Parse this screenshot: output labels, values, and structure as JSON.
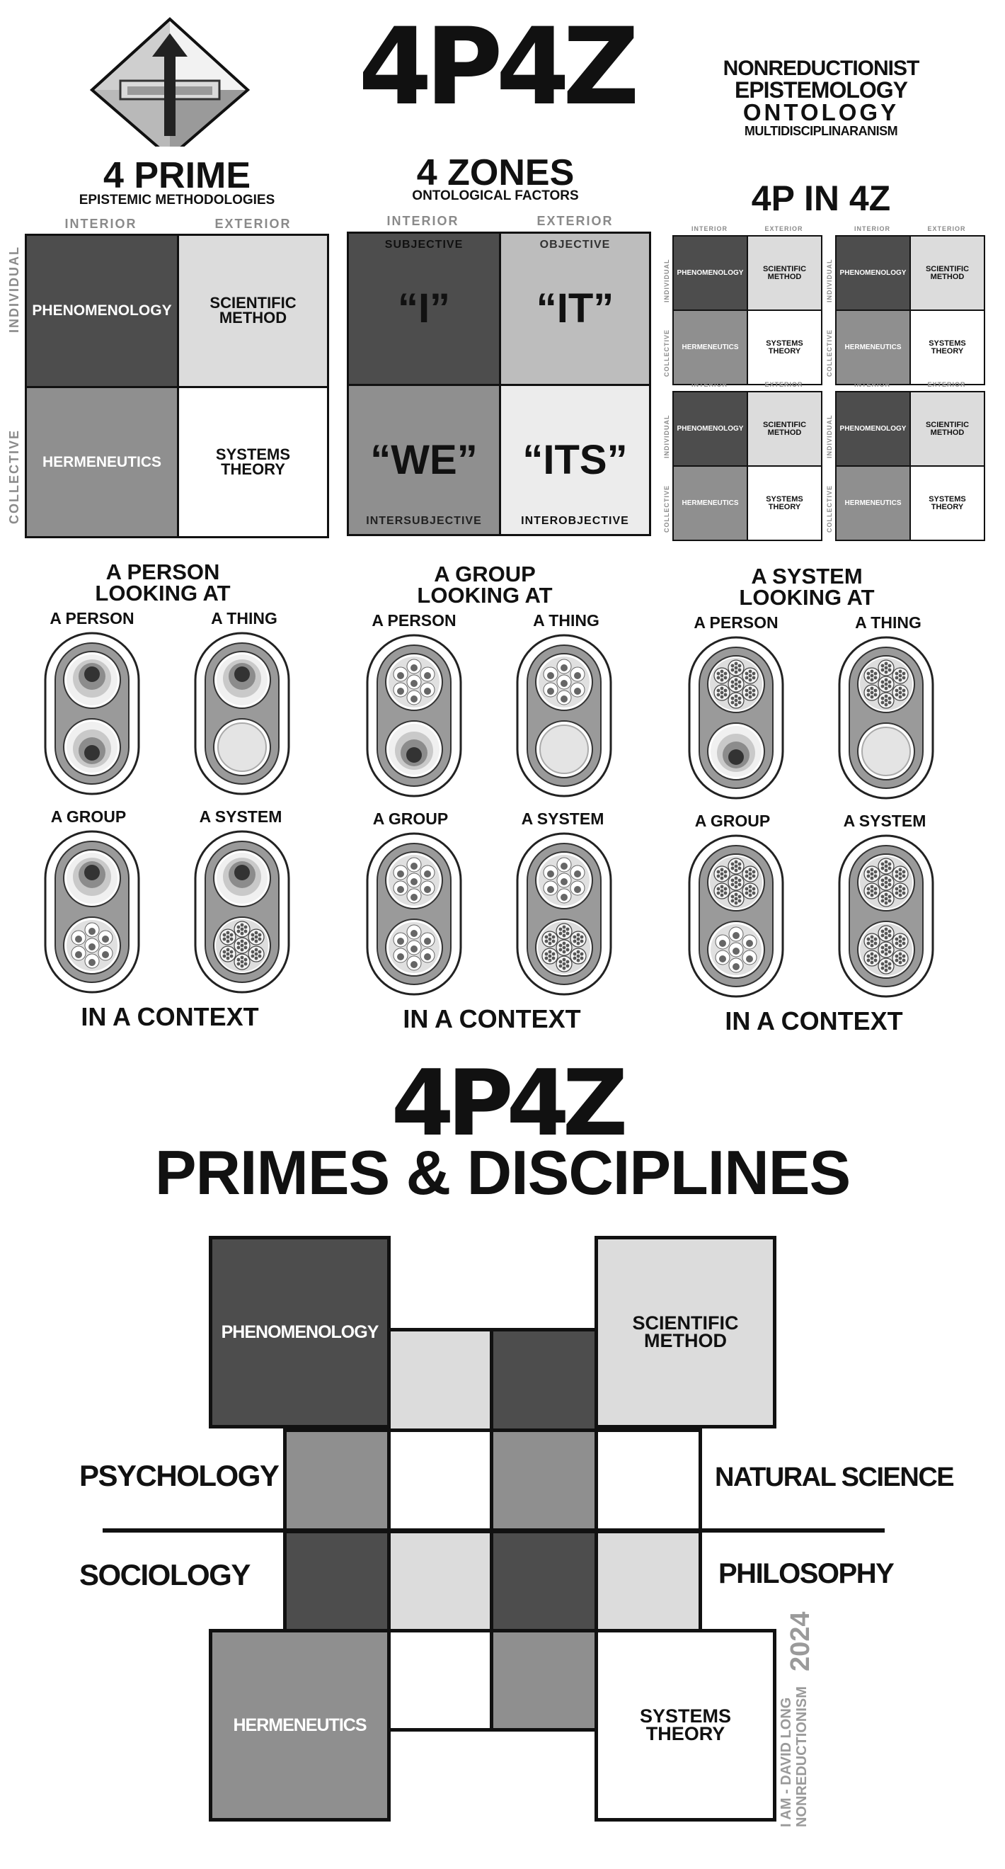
{
  "logo_top": "4P4Z",
  "tagline": [
    "NONREDUCTIONIST",
    "EPISTEMOLOGY",
    "ONTOLOGY",
    "MULTIDISCIPLINARANISM"
  ],
  "prime": {
    "title": "4 PRIME",
    "subtitle": "EPISTEMIC METHODOLOGIES"
  },
  "zones": {
    "title": "4 ZONES",
    "subtitle": "ONTOLOGICAL FACTORS"
  },
  "p4z_title": "4P IN 4Z",
  "axis": {
    "interior": "INTERIOR",
    "exterior": "EXTERIOR",
    "individual": "INDIVIDUAL",
    "collective": "COLLECTIVE"
  },
  "methods": {
    "phenomenology": "PHENOMENOLOGY",
    "scientific_method": "SCIENTIFIC METHOD",
    "hermeneutics": "HERMENEUTICS",
    "systems_theory": "SYSTEMS THEORY"
  },
  "zone_cells": {
    "subjective": "SUBJECTIVE",
    "objective": "OBJECTIVE",
    "intersubjective": "INTERSUBJECTIVE",
    "interobjective": "INTEROBJECTIVE",
    "i": "“I”",
    "it": "“IT”",
    "we": "“WE”",
    "its": "“ITS”"
  },
  "looking": [
    {
      "title_1": "A PERSON",
      "title_2": "LOOKING AT"
    },
    {
      "title_1": "A GROUP",
      "title_2": "LOOKING AT"
    },
    {
      "title_1": "A SYSTEM",
      "title_2": "LOOKING AT"
    }
  ],
  "targets": {
    "person": "A PERSON",
    "thing": "A THING",
    "group": "A GROUP",
    "system": "A SYSTEM"
  },
  "context": "IN A CONTEXT",
  "bottom": {
    "logo": "4P4Z",
    "title": "PRIMES & DISCIPLINES"
  },
  "disciplines": {
    "psychology": "PSYCHOLOGY",
    "natural_science": "NATURAL SCIENCE",
    "sociology": "SOCIOLOGY",
    "philosophy": "PHILOSOPHY"
  },
  "credit": {
    "line1": "I AM - DAVID LONG",
    "line2": "NONREDUCTIONISM",
    "year": "2024"
  },
  "colors": {
    "dark": "#4d4d4d",
    "mid": "#8f8f8f",
    "light": "#dcdcdc",
    "white": "#ffffff",
    "ink": "#111111"
  }
}
